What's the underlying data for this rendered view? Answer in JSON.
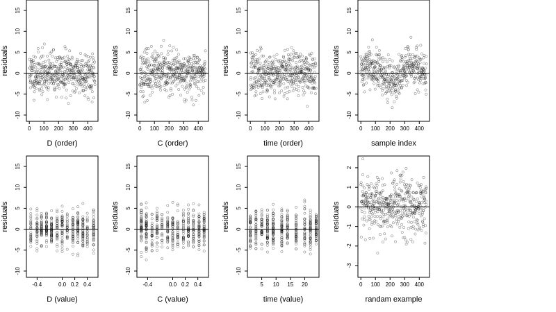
{
  "chart_data": [
    {
      "type": "scatter",
      "xlabel": "D (order)",
      "ylabel": "residuals",
      "xlim": [
        -20,
        470
      ],
      "ylim": [
        -11.5,
        17.5
      ],
      "xticks": [
        0,
        100,
        200,
        300,
        400
      ],
      "yticks": [
        -10,
        -5,
        0,
        5,
        10,
        15
      ],
      "hline": 0,
      "gen": {
        "kind": "order",
        "seed": 11,
        "n": 450,
        "sd": 3.2,
        "lo": -10.8,
        "hi": 16.5
      }
    },
    {
      "type": "scatter",
      "xlabel": "C (order)",
      "ylabel": "residuals",
      "xlim": [
        -20,
        470
      ],
      "ylim": [
        -11.5,
        17.5
      ],
      "xticks": [
        0,
        100,
        200,
        300,
        400
      ],
      "yticks": [
        -10,
        -5,
        0,
        5,
        10,
        15
      ],
      "hline": 0,
      "gen": {
        "kind": "order",
        "seed": 23,
        "n": 450,
        "sd": 3.2,
        "lo": -10.8,
        "hi": 16.5
      }
    },
    {
      "type": "scatter",
      "xlabel": "time (order)",
      "ylabel": "residuals",
      "xlim": [
        -20,
        470
      ],
      "ylim": [
        -11.5,
        17.5
      ],
      "xticks": [
        0,
        100,
        200,
        300,
        400
      ],
      "yticks": [
        -10,
        -5,
        0,
        5,
        10,
        15
      ],
      "hline": 0,
      "gen": {
        "kind": "order",
        "seed": 37,
        "n": 450,
        "sd": 3.2,
        "lo": -10.8,
        "hi": 16.5
      }
    },
    {
      "type": "scatter",
      "xlabel": "sample index",
      "ylabel": "residuals",
      "xlim": [
        -20,
        470
      ],
      "ylim": [
        -11.5,
        17.5
      ],
      "xticks": [
        0,
        100,
        200,
        300,
        400
      ],
      "yticks": [
        -10,
        -5,
        0,
        5,
        10,
        15
      ],
      "hline": 0,
      "gen": {
        "kind": "wave",
        "seed": 41,
        "n": 450,
        "sd": 2.4,
        "lo": -10.8,
        "hi": 16.5
      }
    },
    {
      "type": "scatter",
      "xlabel": "D (value)",
      "ylabel": "residuals",
      "xlim": [
        -0.57,
        0.57
      ],
      "ylim": [
        -11.5,
        17.5
      ],
      "xticks": [
        -0.4,
        0,
        0.2,
        0.4
      ],
      "xticklabels": [
        "-0.4",
        "0.0",
        "0.2",
        "0.4"
      ],
      "yticks": [
        -10,
        -5,
        0,
        5,
        10,
        15
      ],
      "hline": 0,
      "gen": {
        "kind": "discrete",
        "seed": 53,
        "n": 450,
        "sd": 3.0,
        "lo": -10.8,
        "hi": 16.5,
        "levels": [
          -0.5,
          -0.4,
          -0.33,
          -0.25,
          -0.17,
          -0.08,
          0,
          0.08,
          0.17,
          0.25,
          0.33,
          0.4,
          0.5
        ]
      }
    },
    {
      "type": "scatter",
      "xlabel": "C (value)",
      "ylabel": "residuals",
      "xlim": [
        -0.57,
        0.57
      ],
      "ylim": [
        -11.5,
        17.5
      ],
      "xticks": [
        -0.4,
        0,
        0.2,
        0.4
      ],
      "xticklabels": [
        "-0.4",
        "0.0",
        "0.2",
        "0.4"
      ],
      "yticks": [
        -10,
        -5,
        0,
        5,
        10,
        15
      ],
      "hline": 0,
      "gen": {
        "kind": "discrete",
        "seed": 67,
        "n": 450,
        "sd": 3.0,
        "lo": -10.8,
        "hi": 16.5,
        "levels": [
          -0.5,
          -0.42,
          -0.33,
          -0.25,
          -0.17,
          -0.08,
          0,
          0.08,
          0.17,
          0.25,
          0.33,
          0.42,
          0.5
        ]
      }
    },
    {
      "type": "scatter",
      "xlabel": "time (value)",
      "ylabel": "residuals",
      "xlim": [
        0,
        25
      ],
      "ylim": [
        -11.5,
        17.5
      ],
      "xticks": [
        5,
        10,
        15,
        20
      ],
      "yticks": [
        -10,
        -5,
        0,
        5,
        10,
        15
      ],
      "hline": 0,
      "gen": {
        "kind": "discrete",
        "seed": 79,
        "n": 450,
        "sd": 3.0,
        "lo": -10.8,
        "hi": 16.5,
        "levels": [
          1,
          3,
          5,
          7,
          9,
          12,
          14,
          17,
          20,
          22,
          24
        ]
      }
    },
    {
      "type": "scatter",
      "xlabel": "randam example",
      "ylabel": "residuals",
      "xlim": [
        -20,
        470
      ],
      "ylim": [
        -3.6,
        2.6
      ],
      "xticks": [
        0,
        100,
        200,
        300,
        400
      ],
      "yticks": [
        -3,
        -2,
        -1,
        0,
        1,
        2
      ],
      "hline": 0,
      "gen": {
        "kind": "order",
        "seed": 97,
        "n": 450,
        "sd": 1.0,
        "lo": -3.5,
        "hi": 2.5
      }
    }
  ]
}
